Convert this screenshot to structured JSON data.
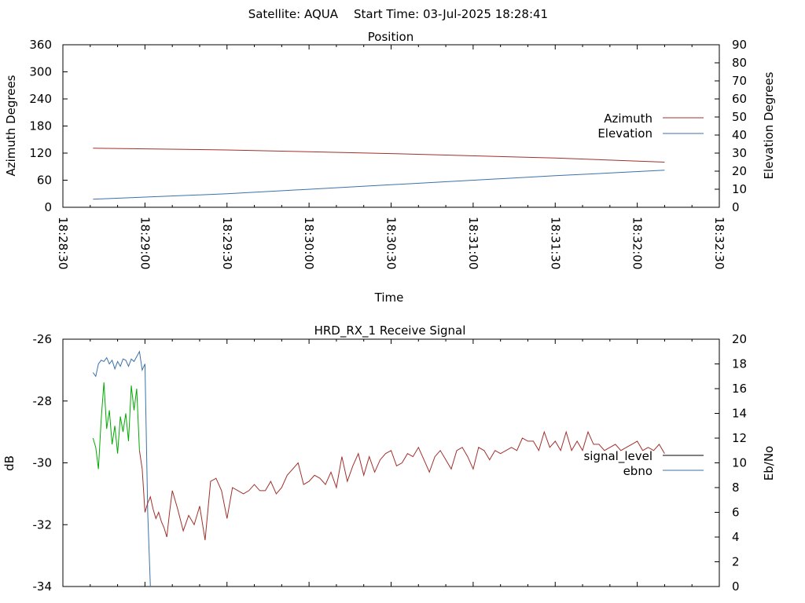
{
  "header": {
    "satellite": "Satellite: AQUA",
    "start_time": "Start Time: 03-Jul-2025 18:28:41"
  },
  "chart_data": [
    {
      "type": "line",
      "title": "Position",
      "xlabel": "Time",
      "ylabel": "Azimuth Degrees",
      "y2label": "Elevation Degrees",
      "xlim": [
        "18:28:30",
        "18:32:30"
      ],
      "ylim": [
        0,
        360
      ],
      "y2lim": [
        0,
        90
      ],
      "x_ticks": [
        "18:28:30",
        "18:29:00",
        "18:29:30",
        "18:30:00",
        "18:30:30",
        "18:31:00",
        "18:31:30",
        "18:32:00",
        "18:32:30"
      ],
      "y_ticks": [
        0,
        60,
        120,
        180,
        240,
        300,
        360
      ],
      "y2_ticks": [
        0,
        10,
        20,
        30,
        40,
        50,
        60,
        70,
        80,
        90
      ],
      "legend_position": "right",
      "grid": false,
      "series": [
        {
          "name": "Azimuth",
          "axis": "y1",
          "color": "#a0302c",
          "x": [
            "18:28:41",
            "18:29:30",
            "18:30:30",
            "18:31:30",
            "18:32:10"
          ],
          "y": [
            131,
            127,
            119,
            109,
            100
          ]
        },
        {
          "name": "Elevation",
          "axis": "y2",
          "color": "#3a72a8",
          "x": [
            "18:28:41",
            "18:29:30",
            "18:30:30",
            "18:31:30",
            "18:32:10"
          ],
          "y": [
            4.5,
            7.5,
            12.5,
            17.5,
            20.5
          ]
        }
      ]
    },
    {
      "type": "line",
      "title": "HRD_RX_1 Receive Signal",
      "xlabel": "",
      "ylabel": "dB",
      "y2label": "Eb/No",
      "xlim": [
        "18:28:30",
        "18:32:30"
      ],
      "ylim": [
        -34,
        -26
      ],
      "y2lim": [
        0,
        20
      ],
      "y_ticks": [
        -34,
        -32,
        -30,
        -28,
        -26
      ],
      "y2_ticks": [
        0,
        2,
        4,
        6,
        8,
        10,
        12,
        14,
        16,
        18,
        20
      ],
      "legend_position": "right",
      "grid": false,
      "series": [
        {
          "name": "signal_level",
          "axis": "y1",
          "color": "#a0302c",
          "early_color": "#00aa00",
          "early_until": "18:28:58",
          "x": [
            "18:28:41",
            "18:28:42",
            "18:28:43",
            "18:28:44",
            "18:28:45",
            "18:28:46",
            "18:28:47",
            "18:28:48",
            "18:28:49",
            "18:28:50",
            "18:28:51",
            "18:28:52",
            "18:28:53",
            "18:28:54",
            "18:28:55",
            "18:28:56",
            "18:28:57",
            "18:28:58",
            "18:28:59",
            "18:29:00",
            "18:29:01",
            "18:29:02",
            "18:29:03",
            "18:29:04",
            "18:29:05",
            "18:29:06",
            "18:29:07",
            "18:29:08",
            "18:29:09",
            "18:29:10",
            "18:29:12",
            "18:29:14",
            "18:29:16",
            "18:29:18",
            "18:29:20",
            "18:29:22",
            "18:29:24",
            "18:29:26",
            "18:29:28",
            "18:29:30",
            "18:29:32",
            "18:29:34",
            "18:29:36",
            "18:29:38",
            "18:29:40",
            "18:29:42",
            "18:29:44",
            "18:29:46",
            "18:29:48",
            "18:29:50",
            "18:29:52",
            "18:29:54",
            "18:29:56",
            "18:29:58",
            "18:30:00",
            "18:30:02",
            "18:30:04",
            "18:30:06",
            "18:30:08",
            "18:30:10",
            "18:30:12",
            "18:30:14",
            "18:30:16",
            "18:30:18",
            "18:30:20",
            "18:30:22",
            "18:30:24",
            "18:30:26",
            "18:30:28",
            "18:30:30",
            "18:30:32",
            "18:30:34",
            "18:30:36",
            "18:30:38",
            "18:30:40",
            "18:30:42",
            "18:30:44",
            "18:30:46",
            "18:30:48",
            "18:30:50",
            "18:30:52",
            "18:30:54",
            "18:30:56",
            "18:30:58",
            "18:31:00",
            "18:31:02",
            "18:31:04",
            "18:31:06",
            "18:31:08",
            "18:31:10",
            "18:31:12",
            "18:31:14",
            "18:31:16",
            "18:31:18",
            "18:31:20",
            "18:31:22",
            "18:31:24",
            "18:31:26",
            "18:31:28",
            "18:31:30",
            "18:31:32",
            "18:31:34",
            "18:31:36",
            "18:31:38",
            "18:31:40",
            "18:31:42",
            "18:31:44",
            "18:31:46",
            "18:31:48",
            "18:31:50",
            "18:31:52",
            "18:31:54",
            "18:31:56",
            "18:31:58",
            "18:32:00",
            "18:32:02",
            "18:32:04",
            "18:32:06",
            "18:32:08",
            "18:32:10"
          ],
          "y": [
            -29.2,
            -29.5,
            -30.2,
            -28.6,
            -27.4,
            -28.9,
            -28.3,
            -29.4,
            -28.8,
            -29.7,
            -28.5,
            -29.0,
            -28.4,
            -29.3,
            -27.5,
            -28.3,
            -27.6,
            -29.6,
            -30.2,
            -31.6,
            -31.3,
            -31.1,
            -31.5,
            -31.8,
            -31.6,
            -31.9,
            -32.1,
            -32.4,
            -31.6,
            -30.9,
            -31.5,
            -32.2,
            -31.7,
            -32.0,
            -31.4,
            -32.5,
            -30.6,
            -30.5,
            -30.9,
            -31.8,
            -30.8,
            -30.9,
            -31.0,
            -30.9,
            -30.7,
            -30.9,
            -30.9,
            -30.6,
            -31.0,
            -30.8,
            -30.4,
            -30.2,
            -30.0,
            -30.7,
            -30.6,
            -30.4,
            -30.5,
            -30.7,
            -30.3,
            -30.8,
            -29.8,
            -30.6,
            -30.1,
            -29.7,
            -30.4,
            -29.8,
            -30.3,
            -29.9,
            -29.7,
            -29.6,
            -30.1,
            -30.0,
            -29.7,
            -29.8,
            -29.5,
            -29.9,
            -30.3,
            -29.8,
            -29.6,
            -29.9,
            -30.2,
            -29.6,
            -29.5,
            -29.8,
            -30.2,
            -29.5,
            -29.6,
            -29.9,
            -29.6,
            -29.7,
            -29.6,
            -29.5,
            -29.6,
            -29.2,
            -29.3,
            -29.3,
            -29.6,
            -29.0,
            -29.5,
            -29.3,
            -29.6,
            -29.0,
            -29.6,
            -29.3,
            -29.6,
            -29.0,
            -29.4,
            -29.4,
            -29.6,
            -29.5,
            -29.4,
            -29.6,
            -29.5,
            -29.4,
            -29.3,
            -29.6,
            -29.5,
            -29.6,
            -29.4,
            -29.7
          ]
        },
        {
          "name": "ebno",
          "axis": "y2",
          "color": "#3a72a8",
          "x": [
            "18:28:41",
            "18:28:42",
            "18:28:43",
            "18:28:44",
            "18:28:45",
            "18:28:46",
            "18:28:47",
            "18:28:48",
            "18:28:49",
            "18:28:50",
            "18:28:51",
            "18:28:52",
            "18:28:53",
            "18:28:54",
            "18:28:55",
            "18:28:56",
            "18:28:57",
            "18:28:58",
            "18:28:59",
            "18:29:00",
            "18:29:01",
            "18:29:02"
          ],
          "y": [
            17.3,
            17.0,
            18.0,
            18.3,
            18.2,
            18.5,
            18.0,
            18.3,
            17.6,
            18.2,
            17.8,
            18.4,
            18.3,
            17.8,
            18.4,
            18.2,
            18.6,
            19.0,
            17.5,
            18.0,
            6.0,
            0
          ]
        }
      ]
    }
  ]
}
